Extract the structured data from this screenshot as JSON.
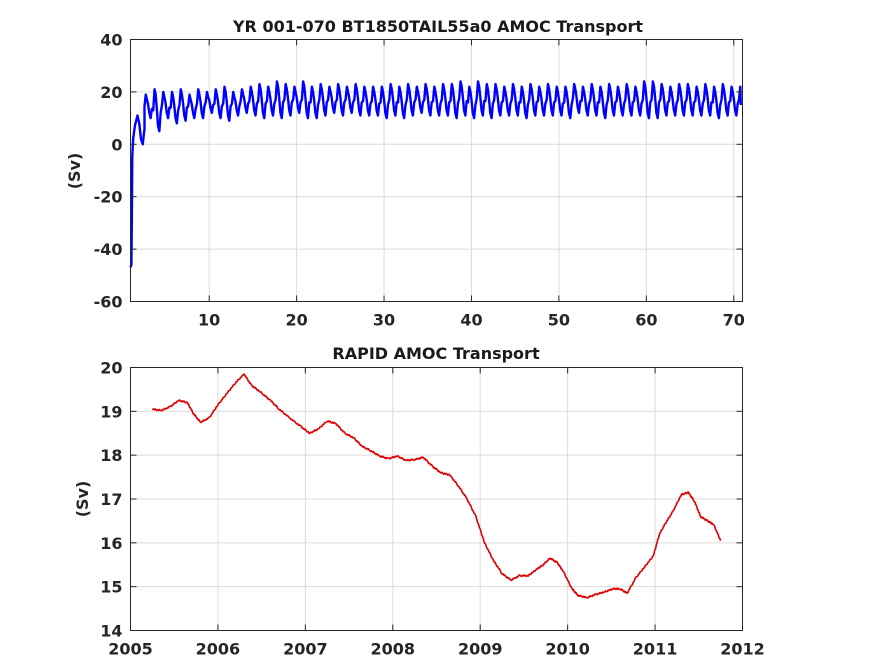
{
  "chart_data": [
    {
      "type": "line",
      "title": "YR 001-070 BT1850TAIL55a0 AMOC Transport",
      "xlabel": "",
      "ylabel": "(Sv)",
      "xlim": [
        1,
        71
      ],
      "ylim": [
        -60,
        40
      ],
      "xticks": [
        10,
        20,
        30,
        40,
        50,
        60,
        70
      ],
      "yticks": [
        -60,
        -40,
        -20,
        0,
        20,
        40
      ],
      "grid": true,
      "series": [
        {
          "color": "#0000ff",
          "start": [
            1.0,
            -47
          ],
          "spinup": [
            [
              1.1,
              -46
            ],
            [
              1.15,
              -30
            ],
            [
              1.2,
              -5
            ],
            [
              1.3,
              2
            ],
            [
              1.5,
              7
            ],
            [
              1.8,
              11
            ],
            [
              2.0,
              8
            ],
            [
              2.2,
              2
            ],
            [
              2.4,
              0
            ],
            [
              2.6,
              6
            ]
          ],
          "x_start": 2.6,
          "x_end": 70.8,
          "period": 1.0,
          "cycle_min": [
            10,
            5,
            10,
            8,
            9,
            10,
            10,
            12,
            10,
            9,
            11,
            12,
            11,
            10,
            11,
            10,
            11,
            12,
            10,
            10,
            11,
            12,
            11,
            12,
            11,
            11,
            11,
            10,
            11,
            10,
            11,
            12,
            11,
            11,
            11,
            10,
            11,
            10,
            11,
            10,
            11,
            11,
            11,
            10,
            11,
            11,
            11,
            11,
            10,
            12,
            11,
            11,
            10,
            11,
            11,
            11,
            11,
            10,
            10,
            11,
            11,
            11,
            11,
            11,
            11,
            10,
            11,
            11,
            12
          ],
          "cycle_max": [
            19,
            21,
            20,
            20,
            21,
            19,
            21,
            20,
            21,
            22,
            20,
            21,
            22,
            23,
            22,
            24,
            23,
            22,
            24,
            22,
            23,
            22,
            23,
            22,
            23,
            22,
            22,
            22,
            23,
            22,
            23,
            22,
            23,
            22,
            23,
            23,
            24,
            22,
            24,
            23,
            23,
            22,
            23,
            22,
            23,
            22,
            23,
            22,
            22,
            23,
            22,
            23,
            22,
            23,
            22,
            23,
            22,
            24,
            24,
            23,
            22,
            23,
            23,
            22,
            23,
            22,
            23,
            22,
            22
          ]
        }
      ]
    },
    {
      "type": "line",
      "title": "RAPID AMOC Transport",
      "xlabel": "",
      "ylabel": "(Sv)",
      "xlim": [
        2005,
        2012
      ],
      "ylim": [
        14,
        20
      ],
      "xticks": [
        2005,
        2006,
        2007,
        2008,
        2009,
        2010,
        2011,
        2012
      ],
      "yticks": [
        14,
        15,
        16,
        17,
        18,
        19,
        20
      ],
      "grid": true,
      "series": [
        {
          "color": "#dd0000",
          "points": [
            [
              2005.25,
              19.05
            ],
            [
              2005.35,
              19.02
            ],
            [
              2005.45,
              19.1
            ],
            [
              2005.55,
              19.25
            ],
            [
              2005.65,
              19.2
            ],
            [
              2005.72,
              18.95
            ],
            [
              2005.8,
              18.75
            ],
            [
              2005.9,
              18.85
            ],
            [
              2006.0,
              19.15
            ],
            [
              2006.1,
              19.4
            ],
            [
              2006.2,
              19.65
            ],
            [
              2006.3,
              19.85
            ],
            [
              2006.38,
              19.6
            ],
            [
              2006.48,
              19.45
            ],
            [
              2006.6,
              19.25
            ],
            [
              2006.7,
              19.05
            ],
            [
              2006.82,
              18.85
            ],
            [
              2006.95,
              18.65
            ],
            [
              2007.05,
              18.5
            ],
            [
              2007.15,
              18.6
            ],
            [
              2007.25,
              18.78
            ],
            [
              2007.35,
              18.72
            ],
            [
              2007.45,
              18.5
            ],
            [
              2007.55,
              18.4
            ],
            [
              2007.65,
              18.2
            ],
            [
              2007.75,
              18.1
            ],
            [
              2007.85,
              17.98
            ],
            [
              2007.95,
              17.92
            ],
            [
              2008.05,
              17.98
            ],
            [
              2008.15,
              17.88
            ],
            [
              2008.25,
              17.9
            ],
            [
              2008.35,
              17.95
            ],
            [
              2008.45,
              17.75
            ],
            [
              2008.55,
              17.6
            ],
            [
              2008.65,
              17.55
            ],
            [
              2008.75,
              17.3
            ],
            [
              2008.85,
              17.0
            ],
            [
              2008.95,
              16.6
            ],
            [
              2009.05,
              16.0
            ],
            [
              2009.15,
              15.6
            ],
            [
              2009.25,
              15.3
            ],
            [
              2009.35,
              15.15
            ],
            [
              2009.45,
              15.25
            ],
            [
              2009.55,
              15.25
            ],
            [
              2009.65,
              15.4
            ],
            [
              2009.72,
              15.5
            ],
            [
              2009.8,
              15.65
            ],
            [
              2009.88,
              15.55
            ],
            [
              2009.95,
              15.35
            ],
            [
              2010.05,
              14.95
            ],
            [
              2010.12,
              14.8
            ],
            [
              2010.22,
              14.75
            ],
            [
              2010.32,
              14.82
            ],
            [
              2010.42,
              14.88
            ],
            [
              2010.52,
              14.95
            ],
            [
              2010.6,
              14.95
            ],
            [
              2010.68,
              14.85
            ],
            [
              2010.78,
              15.2
            ],
            [
              2010.88,
              15.45
            ],
            [
              2010.98,
              15.7
            ],
            [
              2011.05,
              16.2
            ],
            [
              2011.12,
              16.45
            ],
            [
              2011.2,
              16.7
            ],
            [
              2011.3,
              17.1
            ],
            [
              2011.38,
              17.15
            ],
            [
              2011.45,
              16.95
            ],
            [
              2011.52,
              16.6
            ],
            [
              2011.6,
              16.5
            ],
            [
              2011.67,
              16.42
            ],
            [
              2011.75,
              16.05
            ]
          ]
        }
      ]
    }
  ]
}
